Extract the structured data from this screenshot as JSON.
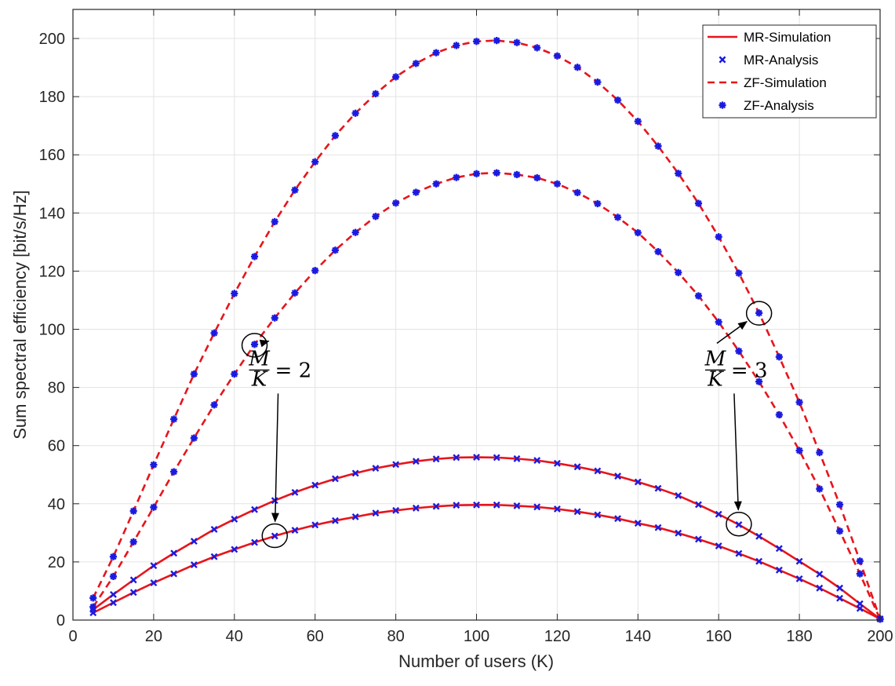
{
  "chart_data": {
    "type": "line",
    "xlabel": "Number of users (K)",
    "ylabel": "Sum spectral efficiency [bit/s/Hz]",
    "xlim": [
      0,
      200
    ],
    "ylim": [
      0,
      210
    ],
    "xticks": [
      "0",
      "20",
      "40",
      "60",
      "80",
      "100",
      "120",
      "140",
      "160",
      "180",
      "200"
    ],
    "yticks": [
      "0",
      "20",
      "40",
      "60",
      "80",
      "100",
      "120",
      "140",
      "160",
      "180",
      "200"
    ],
    "grid": true,
    "legend_position": "top-right",
    "legend": [
      {
        "label": "MR-Simulation",
        "style": "solid-line",
        "color": "#e8141b"
      },
      {
        "label": "MR-Analysis",
        "style": "x-marker",
        "color": "#1a1ae0"
      },
      {
        "label": "ZF-Simulation",
        "style": "dashed-line",
        "color": "#e8141b"
      },
      {
        "label": "ZF-Analysis",
        "style": "star-marker",
        "color": "#1a1ae0"
      }
    ],
    "series": [
      {
        "group": "ZF",
        "case": "M/K=3",
        "x": [
          5,
          10,
          15,
          20,
          25,
          30,
          35,
          40,
          45,
          50,
          55,
          60,
          65,
          70,
          75,
          80,
          85,
          90,
          95,
          100,
          105,
          110,
          115,
          120,
          125,
          130,
          135,
          140,
          145,
          150,
          155,
          160,
          165,
          170,
          175,
          180,
          185,
          190,
          195,
          200
        ],
        "y": [
          7.6,
          21.8,
          37.5,
          53.4,
          69.1,
          84.6,
          98.7,
          112.3,
          125.0,
          137.0,
          147.9,
          157.6,
          166.6,
          174.3,
          181.0,
          186.8,
          191.4,
          195.1,
          197.6,
          199.0,
          199.3,
          198.6,
          196.8,
          194.0,
          190.1,
          185.0,
          178.8,
          171.5,
          163.0,
          153.6,
          143.3,
          131.8,
          119.3,
          105.6,
          90.5,
          74.9,
          57.6,
          39.7,
          20.3,
          0.4
        ]
      },
      {
        "group": "ZF",
        "case": "M/K=2",
        "x": [
          5,
          10,
          15,
          20,
          25,
          30,
          35,
          40,
          45,
          50,
          55,
          60,
          65,
          70,
          75,
          80,
          85,
          90,
          95,
          100,
          105,
          110,
          115,
          120,
          125,
          130,
          135,
          140,
          145,
          150,
          155,
          160,
          165,
          170,
          175,
          180,
          185,
          190,
          195,
          200
        ],
        "y": [
          4.5,
          15.0,
          26.9,
          38.8,
          51.0,
          62.6,
          74.0,
          84.6,
          94.8,
          103.9,
          112.5,
          120.2,
          127.2,
          133.3,
          138.8,
          143.4,
          147.1,
          150.0,
          152.2,
          153.5,
          153.8,
          153.2,
          152.1,
          150.0,
          147.0,
          143.2,
          138.5,
          133.2,
          126.7,
          119.5,
          111.5,
          102.5,
          92.5,
          82.0,
          70.6,
          58.3,
          45.1,
          30.6,
          15.9,
          0.3
        ]
      },
      {
        "group": "MR",
        "case": "M/K=3",
        "x": [
          5,
          10,
          15,
          20,
          25,
          30,
          35,
          40,
          45,
          50,
          55,
          60,
          65,
          70,
          75,
          80,
          85,
          90,
          95,
          100,
          105,
          110,
          115,
          120,
          125,
          130,
          135,
          140,
          145,
          150,
          155,
          160,
          165,
          170,
          175,
          180,
          185,
          190,
          195,
          200
        ],
        "y": [
          3.6,
          8.8,
          13.8,
          18.7,
          23.0,
          27.1,
          31.2,
          34.7,
          38.0,
          41.1,
          43.9,
          46.4,
          48.6,
          50.5,
          52.2,
          53.5,
          54.6,
          55.4,
          55.9,
          56.0,
          55.9,
          55.5,
          54.9,
          53.9,
          52.7,
          51.3,
          49.5,
          47.5,
          45.3,
          42.8,
          39.7,
          36.4,
          32.8,
          28.8,
          24.6,
          20.2,
          15.8,
          11.0,
          5.6,
          0.4
        ]
      },
      {
        "group": "MR",
        "case": "M/K=2",
        "x": [
          5,
          10,
          15,
          20,
          25,
          30,
          35,
          40,
          45,
          50,
          55,
          60,
          65,
          70,
          75,
          80,
          85,
          90,
          95,
          100,
          105,
          110,
          115,
          120,
          125,
          130,
          135,
          140,
          145,
          150,
          155,
          160,
          165,
          170,
          175,
          180,
          185,
          190,
          195,
          200
        ],
        "y": [
          2.5,
          6.0,
          9.5,
          12.8,
          15.9,
          19.0,
          21.8,
          24.3,
          26.7,
          28.9,
          30.9,
          32.7,
          34.2,
          35.5,
          36.8,
          37.7,
          38.5,
          39.1,
          39.5,
          39.6,
          39.6,
          39.3,
          38.9,
          38.2,
          37.3,
          36.2,
          34.9,
          33.3,
          31.8,
          29.9,
          27.8,
          25.5,
          22.9,
          20.2,
          17.2,
          14.2,
          11.0,
          7.5,
          4.0,
          0.4
        ]
      }
    ],
    "annotations": [
      {
        "label": "M/K = 2",
        "num": "M",
        "den": "K",
        "eq": "= 2",
        "anchor": [
          52,
          86
        ],
        "targets": [
          [
            45,
            94.5
          ],
          [
            50,
            29
          ]
        ]
      },
      {
        "label": "M/K = 3",
        "num": "M",
        "den": "K",
        "eq": "= 3",
        "anchor": [
          165,
          86
        ],
        "targets": [
          [
            170,
            105.5
          ],
          [
            165,
            33
          ]
        ]
      }
    ]
  }
}
